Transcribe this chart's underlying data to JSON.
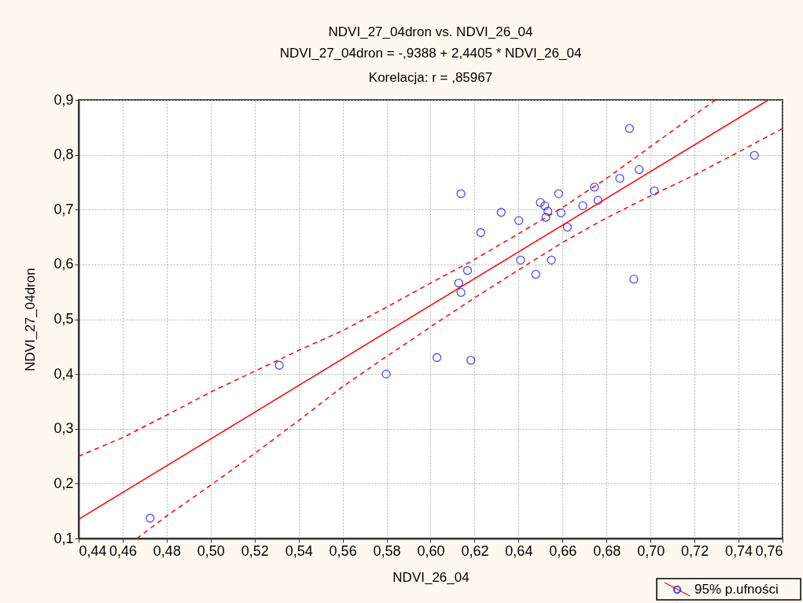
{
  "chart_data": {
    "type": "scatter",
    "title": "NDVI_27_04dron vs. NDVI_26_04",
    "subtitle": "NDVI_27_04dron = -,9388 + 2,4405 * NDVI_26_04\nKorelacja: r =   ,85967",
    "xlabel": "NDVI_26_04",
    "ylabel": "NDVI_27_04dron",
    "xlim": [
      0.44,
      0.76
    ],
    "xticks": [
      {
        "value": 0.44,
        "label": "0,44"
      },
      {
        "value": 0.46,
        "label": "0,46"
      },
      {
        "value": 0.48,
        "label": "0,48"
      },
      {
        "value": 0.5,
        "label": "0,50"
      },
      {
        "value": 0.52,
        "label": "0,52"
      },
      {
        "value": 0.54,
        "label": "0,54"
      },
      {
        "value": 0.56,
        "label": "0,56"
      },
      {
        "value": 0.58,
        "label": "0,58"
      },
      {
        "value": 0.6,
        "label": "0,60"
      },
      {
        "value": 0.62,
        "label": "0,62"
      },
      {
        "value": 0.64,
        "label": "0,64"
      },
      {
        "value": 0.66,
        "label": "0,66"
      },
      {
        "value": 0.68,
        "label": "0,68"
      },
      {
        "value": 0.7,
        "label": "0,70"
      },
      {
        "value": 0.72,
        "label": "0,72"
      },
      {
        "value": 0.74,
        "label": "0,74"
      },
      {
        "value": 0.76,
        "label": "0,76"
      }
    ],
    "ylim": [
      0.1,
      0.9
    ],
    "yticks": [
      {
        "value": 0.1,
        "label": "0,1"
      },
      {
        "value": 0.2,
        "label": "0,2"
      },
      {
        "value": 0.3,
        "label": "0,3"
      },
      {
        "value": 0.4,
        "label": "0,4"
      },
      {
        "value": 0.5,
        "label": "0,5"
      },
      {
        "value": 0.6,
        "label": "0,6"
      },
      {
        "value": 0.7,
        "label": "0,7"
      },
      {
        "value": 0.8,
        "label": "0,8"
      },
      {
        "value": 0.9,
        "label": "0,9"
      }
    ],
    "grid": true,
    "legend": "bottom right",
    "series": [
      {
        "color": "#0000ff",
        "marker": "circle",
        "x": [
          0.4725,
          0.5312,
          0.5798,
          0.6029,
          0.6183,
          0.6904,
          0.7472,
          0.6948,
          0.686,
          0.6745,
          0.7017,
          0.6138,
          0.6582,
          0.6761,
          0.6499,
          0.6519,
          0.6692,
          0.6533,
          0.6321,
          0.6593,
          0.6524,
          0.6401,
          0.6622,
          0.6228,
          0.6409,
          0.6549,
          0.6168,
          0.6478,
          0.6924,
          0.6128,
          0.6138
        ],
        "values": [
          0.137,
          0.416,
          0.4,
          0.43,
          0.425,
          0.848,
          0.799,
          0.773,
          0.757,
          0.741,
          0.734,
          0.729,
          0.729,
          0.717,
          0.713,
          0.707,
          0.707,
          0.697,
          0.695,
          0.694,
          0.686,
          0.68,
          0.668,
          0.658,
          0.608,
          0.608,
          0.589,
          0.582,
          0.573,
          0.566,
          0.549
        ]
      },
      {
        "type": "line",
        "color": "#ff0000",
        "line_style": "solid",
        "x": [
          0.44,
          0.7535
        ],
        "values": [
          0.135,
          0.9
        ]
      },
      {
        "type": "line",
        "color": "#ff0000",
        "line_style": "dashed",
        "name": "95% p.ufności",
        "x": [
          0.44,
          0.46,
          0.48,
          0.5,
          0.52,
          0.54,
          0.56,
          0.58,
          0.6,
          0.62,
          0.64,
          0.66,
          0.68,
          0.7,
          0.72,
          0.7295
        ],
        "values": [
          0.25,
          0.284,
          0.325,
          0.367,
          0.405,
          0.443,
          0.479,
          0.522,
          0.566,
          0.609,
          0.656,
          0.704,
          0.757,
          0.815,
          0.873,
          0.9
        ]
      },
      {
        "type": "line",
        "color": "#ff0000",
        "line_style": "dashed",
        "x": [
          0.4665,
          0.48,
          0.5,
          0.52,
          0.54,
          0.56,
          0.58,
          0.6,
          0.62,
          0.64,
          0.66,
          0.68,
          0.7,
          0.72,
          0.74,
          0.76
        ],
        "values": [
          0.1,
          0.141,
          0.197,
          0.255,
          0.315,
          0.377,
          0.432,
          0.486,
          0.539,
          0.59,
          0.64,
          0.685,
          0.725,
          0.763,
          0.805,
          0.848
        ]
      }
    ]
  }
}
